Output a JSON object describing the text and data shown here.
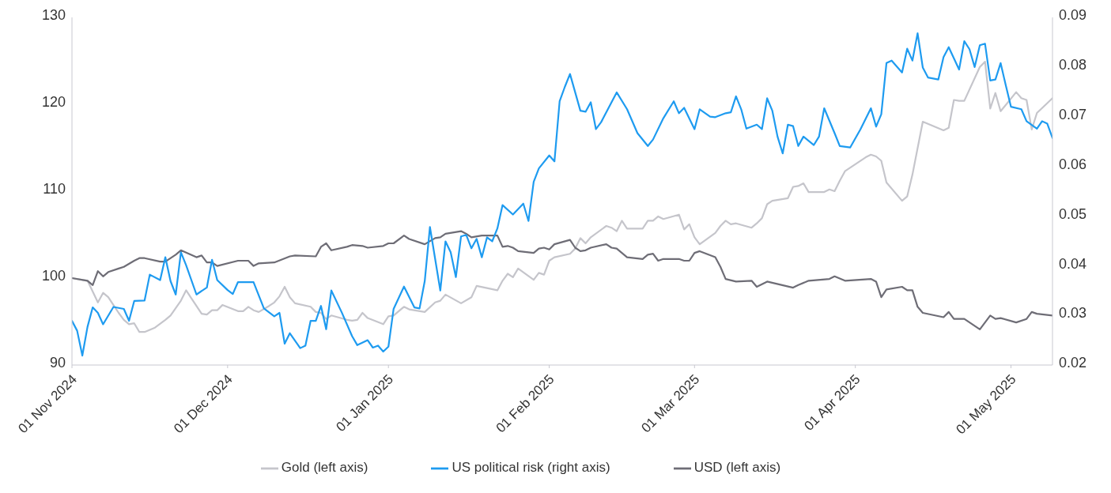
{
  "chart_data": {
    "type": "line",
    "legend": "bottom",
    "xlim": [
      "2024-11-01",
      "2025-05-09"
    ],
    "xticks": [
      {
        "value": "2024-11-01",
        "label": "01 Nov 2024"
      },
      {
        "value": "2024-12-01",
        "label": "01 Dec 2024"
      },
      {
        "value": "2025-01-01",
        "label": "01 Jan 2025"
      },
      {
        "value": "2025-02-01",
        "label": "01 Feb 2025"
      },
      {
        "value": "2025-03-01",
        "label": "01 Mar 2025"
      },
      {
        "value": "2025-04-01",
        "label": "01 Apr 2025"
      },
      {
        "value": "2025-05-01",
        "label": "01 May 2025"
      }
    ],
    "ylim": [
      90,
      130
    ],
    "yticks": [
      90,
      100,
      110,
      120,
      130
    ],
    "y2lim": [
      0.02,
      0.09
    ],
    "y2ticks": [
      0.02,
      0.03,
      0.04,
      0.05,
      0.06,
      0.07,
      0.08,
      0.09
    ],
    "series": [
      {
        "name": "Gold (left axis)",
        "color": "#c5c5cb",
        "x": [
          "2024-11-01",
          "2024-11-04",
          "2024-11-06",
          "2024-11-07",
          "2024-11-08",
          "2024-11-09",
          "2024-11-10",
          "2024-11-11",
          "2024-11-12",
          "2024-11-13",
          "2024-11-14",
          "2024-11-15",
          "2024-11-17",
          "2024-11-19",
          "2024-11-20",
          "2024-11-22",
          "2024-11-23",
          "2024-11-24",
          "2024-11-26",
          "2024-11-27",
          "2024-11-28",
          "2024-11-29",
          "2024-11-30",
          "2024-12-03",
          "2024-12-04",
          "2024-12-05",
          "2024-12-06",
          "2024-12-07",
          "2024-12-09",
          "2024-12-10",
          "2024-12-11",
          "2024-12-12",
          "2024-12-13",
          "2024-12-14",
          "2024-12-17",
          "2024-12-18",
          "2024-12-19",
          "2024-12-20",
          "2024-12-21",
          "2024-12-24",
          "2024-12-25",
          "2024-12-26",
          "2024-12-27",
          "2024-12-28",
          "2024-12-31",
          "2025-01-01",
          "2025-01-02",
          "2025-01-04",
          "2025-01-05",
          "2025-01-08",
          "2025-01-10",
          "2025-01-11",
          "2025-01-12",
          "2025-01-15",
          "2025-01-17",
          "2025-01-18",
          "2025-01-22",
          "2025-01-23",
          "2025-01-24",
          "2025-01-25",
          "2025-01-26",
          "2025-01-29",
          "2025-01-30",
          "2025-01-31",
          "2025-02-01",
          "2025-02-02",
          "2025-02-05",
          "2025-02-06",
          "2025-02-07",
          "2025-02-08",
          "2025-02-09",
          "2025-02-12",
          "2025-02-13",
          "2025-02-14",
          "2025-02-15",
          "2025-02-16",
          "2025-02-19",
          "2025-02-20",
          "2025-02-21",
          "2025-02-22",
          "2025-02-23",
          "2025-02-26",
          "2025-02-27",
          "2025-02-28",
          "2025-03-01",
          "2025-03-02",
          "2025-03-05",
          "2025-03-06",
          "2025-03-07",
          "2025-03-08",
          "2025-03-09",
          "2025-03-12",
          "2025-03-13",
          "2025-03-14",
          "2025-03-15",
          "2025-03-16",
          "2025-03-19",
          "2025-03-20",
          "2025-03-21",
          "2025-03-22",
          "2025-03-23",
          "2025-03-26",
          "2025-03-27",
          "2025-03-28",
          "2025-03-29",
          "2025-03-30",
          "2025-04-03",
          "2025-04-04",
          "2025-04-05",
          "2025-04-06",
          "2025-04-07",
          "2025-04-10",
          "2025-04-11",
          "2025-04-12",
          "2025-04-14",
          "2025-04-18",
          "2025-04-19",
          "2025-04-20",
          "2025-04-21",
          "2025-04-22",
          "2025-04-25",
          "2025-04-26",
          "2025-04-27",
          "2025-04-28",
          "2025-04-29",
          "2025-05-02",
          "2025-05-03",
          "2025-05-04",
          "2025-05-05",
          "2025-05-06",
          "2025-05-09"
        ],
        "values": [
          100.0,
          99.7,
          97.2,
          98.3,
          97.8,
          96.9,
          96.0,
          95.2,
          94.7,
          94.8,
          93.8,
          93.8,
          94.3,
          95.2,
          95.7,
          97.4,
          98.6,
          97.7,
          95.9,
          95.8,
          96.3,
          96.3,
          96.9,
          96.2,
          96.2,
          96.7,
          96.3,
          96.1,
          96.8,
          97.2,
          97.9,
          99.0,
          97.8,
          97.1,
          96.7,
          96.1,
          96.0,
          95.3,
          95.7,
          95.2,
          95.1,
          95.2,
          96.0,
          95.4,
          94.7,
          95.6,
          95.7,
          96.7,
          96.4,
          96.1,
          97.2,
          97.4,
          98.1,
          97.1,
          97.8,
          99.1,
          98.6,
          99.7,
          100.5,
          100.1,
          101.1,
          99.8,
          100.6,
          100.4,
          102.0,
          102.4,
          102.8,
          103.4,
          104.6,
          104.0,
          104.7,
          106.0,
          105.8,
          105.4,
          106.6,
          105.7,
          105.7,
          106.6,
          106.6,
          107.1,
          106.8,
          107.3,
          105.6,
          106.2,
          104.7,
          103.9,
          105.2,
          106.0,
          106.6,
          106.2,
          106.3,
          105.8,
          106.3,
          106.9,
          108.5,
          108.9,
          109.2,
          110.5,
          110.6,
          110.9,
          109.9,
          109.9,
          110.2,
          110.0,
          111.2,
          112.3,
          113.9,
          114.2,
          114.0,
          113.5,
          111.0,
          108.9,
          109.4,
          111.9,
          118.0,
          117.0,
          117.3,
          120.5,
          120.4,
          120.4,
          124.3,
          124.9,
          119.5,
          121.3,
          119.2,
          121.4,
          120.7,
          120.5,
          117.1,
          119.0,
          120.7
        ]
      },
      {
        "name": "USD (left axis)",
        "color": "#6e6d76",
        "x": [
          "2024-11-01",
          "2024-11-04",
          "2024-11-05",
          "2024-11-06",
          "2024-11-07",
          "2024-11-08",
          "2024-11-10",
          "2024-11-11",
          "2024-11-13",
          "2024-11-14",
          "2024-11-15",
          "2024-11-18",
          "2024-11-19",
          "2024-11-21",
          "2024-11-22",
          "2024-11-25",
          "2024-11-26",
          "2024-11-27",
          "2024-11-28",
          "2024-11-29",
          "2024-12-03",
          "2024-12-05",
          "2024-12-06",
          "2024-12-07",
          "2024-12-10",
          "2024-12-13",
          "2024-12-14",
          "2024-12-18",
          "2024-12-19",
          "2024-12-20",
          "2024-12-21",
          "2024-12-24",
          "2024-12-25",
          "2024-12-27",
          "2024-12-28",
          "2024-12-31",
          "2025-01-01",
          "2025-01-02",
          "2025-01-04",
          "2025-01-05",
          "2025-01-08",
          "2025-01-10",
          "2025-01-11",
          "2025-01-12",
          "2025-01-15",
          "2025-01-16",
          "2025-01-17",
          "2025-01-19",
          "2025-01-22",
          "2025-01-23",
          "2025-01-24",
          "2025-01-25",
          "2025-01-26",
          "2025-01-29",
          "2025-01-30",
          "2025-01-31",
          "2025-02-01",
          "2025-02-02",
          "2025-02-05",
          "2025-02-06",
          "2025-02-07",
          "2025-02-08",
          "2025-02-09",
          "2025-02-12",
          "2025-02-13",
          "2025-02-14",
          "2025-02-15",
          "2025-02-16",
          "2025-02-19",
          "2025-02-20",
          "2025-02-21",
          "2025-02-22",
          "2025-02-23",
          "2025-02-26",
          "2025-02-27",
          "2025-02-28",
          "2025-03-01",
          "2025-03-02",
          "2025-03-05",
          "2025-03-06",
          "2025-03-07",
          "2025-03-09",
          "2025-03-12",
          "2025-03-13",
          "2025-03-15",
          "2025-03-20",
          "2025-03-21",
          "2025-03-23",
          "2025-03-27",
          "2025-03-28",
          "2025-03-30",
          "2025-04-04",
          "2025-04-05",
          "2025-04-06",
          "2025-04-07",
          "2025-04-10",
          "2025-04-11",
          "2025-04-12",
          "2025-04-13",
          "2025-04-14",
          "2025-04-18",
          "2025-04-19",
          "2025-04-20",
          "2025-04-22",
          "2025-04-25",
          "2025-04-26",
          "2025-04-27",
          "2025-04-28",
          "2025-04-29",
          "2025-05-02",
          "2025-05-04",
          "2025-05-05",
          "2025-05-06",
          "2025-05-09"
        ],
        "values": [
          100.0,
          99.7,
          99.2,
          100.8,
          100.2,
          100.7,
          101.1,
          101.3,
          102.0,
          102.3,
          102.3,
          101.9,
          101.9,
          102.7,
          103.2,
          102.4,
          102.6,
          101.8,
          101.8,
          101.4,
          102.0,
          102.0,
          101.4,
          101.7,
          101.8,
          102.5,
          102.6,
          102.5,
          103.6,
          104.0,
          103.2,
          103.6,
          103.8,
          103.7,
          103.5,
          103.7,
          104.0,
          104.0,
          104.9,
          104.5,
          103.9,
          104.6,
          104.7,
          105.1,
          105.4,
          105.1,
          104.7,
          104.9,
          104.9,
          103.6,
          103.7,
          103.5,
          103.1,
          102.9,
          103.4,
          103.5,
          103.3,
          103.9,
          104.4,
          103.5,
          103.1,
          103.2,
          103.5,
          103.9,
          103.5,
          103.4,
          102.9,
          102.4,
          102.2,
          102.7,
          102.8,
          102.0,
          102.2,
          102.2,
          102.0,
          102.0,
          102.9,
          103.1,
          102.4,
          101.3,
          99.9,
          99.6,
          99.7,
          99.0,
          99.6,
          98.9,
          99.2,
          99.7,
          99.9,
          100.2,
          99.7,
          99.9,
          99.6,
          97.8,
          98.7,
          99.0,
          98.6,
          98.6,
          96.7,
          96.0,
          95.5,
          96.1,
          95.3,
          95.3,
          94.1,
          94.9,
          95.7,
          95.3,
          95.4,
          94.9,
          95.3,
          96.1,
          95.9,
          95.7
        ]
      },
      {
        "name": "US political risk (right axis)",
        "color": "#1e9bf0",
        "axis": "y2",
        "x": [
          "2024-11-01",
          "2024-11-02",
          "2024-11-03",
          "2024-11-04",
          "2024-11-05",
          "2024-11-06",
          "2024-11-07",
          "2024-11-09",
          "2024-11-11",
          "2024-11-12",
          "2024-11-13",
          "2024-11-15",
          "2024-11-16",
          "2024-11-18",
          "2024-11-19",
          "2024-11-20",
          "2024-11-21",
          "2024-11-22",
          "2024-11-23",
          "2024-11-25",
          "2024-11-27",
          "2024-11-28",
          "2024-11-29",
          "2024-12-01",
          "2024-12-02",
          "2024-12-03",
          "2024-12-06",
          "2024-12-08",
          "2024-12-10",
          "2024-12-11",
          "2024-12-12",
          "2024-12-13",
          "2024-12-15",
          "2024-12-16",
          "2024-12-17",
          "2024-12-18",
          "2024-12-19",
          "2024-12-20",
          "2024-12-21",
          "2024-12-23",
          "2024-12-25",
          "2024-12-26",
          "2024-12-28",
          "2024-12-29",
          "2024-12-30",
          "2024-12-31",
          "2025-01-01",
          "2025-01-02",
          "2025-01-04",
          "2025-01-06",
          "2025-01-07",
          "2025-01-08",
          "2025-01-09",
          "2025-01-10",
          "2025-01-11",
          "2025-01-12",
          "2025-01-13",
          "2025-01-14",
          "2025-01-15",
          "2025-01-16",
          "2025-01-17",
          "2025-01-18",
          "2025-01-19",
          "2025-01-20",
          "2025-01-21",
          "2025-01-22",
          "2025-01-23",
          "2025-01-25",
          "2025-01-27",
          "2025-01-28",
          "2025-01-29",
          "2025-01-30",
          "2025-02-01",
          "2025-02-02",
          "2025-02-03",
          "2025-02-04",
          "2025-02-05",
          "2025-02-07",
          "2025-02-08",
          "2025-02-09",
          "2025-02-10",
          "2025-02-11",
          "2025-02-14",
          "2025-02-16",
          "2025-02-18",
          "2025-02-20",
          "2025-02-21",
          "2025-02-23",
          "2025-02-25",
          "2025-02-26",
          "2025-02-27",
          "2025-03-01",
          "2025-03-02",
          "2025-03-04",
          "2025-03-05",
          "2025-03-07",
          "2025-03-08",
          "2025-03-09",
          "2025-03-10",
          "2025-03-11",
          "2025-03-13",
          "2025-03-14",
          "2025-03-15",
          "2025-03-16",
          "2025-03-17",
          "2025-03-18",
          "2025-03-19",
          "2025-03-20",
          "2025-03-21",
          "2025-03-22",
          "2025-03-24",
          "2025-03-25",
          "2025-03-26",
          "2025-03-28",
          "2025-03-29",
          "2025-03-31",
          "2025-04-02",
          "2025-04-04",
          "2025-04-05",
          "2025-04-06",
          "2025-04-07",
          "2025-04-08",
          "2025-04-10",
          "2025-04-11",
          "2025-04-12",
          "2025-04-13",
          "2025-04-14",
          "2025-04-15",
          "2025-04-17",
          "2025-04-18",
          "2025-04-19",
          "2025-04-21",
          "2025-04-22",
          "2025-04-23",
          "2025-04-24",
          "2025-04-25",
          "2025-04-26",
          "2025-04-27",
          "2025-04-28",
          "2025-04-29",
          "2025-04-30",
          "2025-05-01",
          "2025-05-03",
          "2025-05-04",
          "2025-05-06",
          "2025-05-07",
          "2025-05-08",
          "2025-05-09"
        ],
        "values": [
          0.0289,
          0.0269,
          0.0219,
          0.0277,
          0.0316,
          0.0305,
          0.0282,
          0.0317,
          0.0313,
          0.0289,
          0.0329,
          0.033,
          0.0382,
          0.0371,
          0.0417,
          0.0369,
          0.0342,
          0.0427,
          0.0401,
          0.0342,
          0.0356,
          0.0412,
          0.0371,
          0.0351,
          0.0343,
          0.0367,
          0.0367,
          0.0314,
          0.0298,
          0.0305,
          0.0243,
          0.0264,
          0.0234,
          0.0239,
          0.0289,
          0.0289,
          0.0319,
          0.0272,
          0.035,
          0.0306,
          0.0258,
          0.024,
          0.025,
          0.0235,
          0.0239,
          0.0227,
          0.0237,
          0.0313,
          0.0358,
          0.0316,
          0.0314,
          0.0369,
          0.0478,
          0.0414,
          0.035,
          0.0449,
          0.0427,
          0.0377,
          0.0459,
          0.0462,
          0.0435,
          0.0454,
          0.0417,
          0.0457,
          0.0449,
          0.0475,
          0.0522,
          0.0503,
          0.0525,
          0.049,
          0.0569,
          0.0596,
          0.0622,
          0.061,
          0.0731,
          0.076,
          0.0786,
          0.0712,
          0.071,
          0.0729,
          0.0675,
          0.0689,
          0.0749,
          0.0715,
          0.0667,
          0.0641,
          0.0654,
          0.0697,
          0.0731,
          0.0707,
          0.0718,
          0.0675,
          0.0715,
          0.07,
          0.0699,
          0.0707,
          0.0709,
          0.0741,
          0.0715,
          0.0676,
          0.0684,
          0.0675,
          0.0737,
          0.0712,
          0.066,
          0.0626,
          0.0684,
          0.0681,
          0.0641,
          0.066,
          0.0643,
          0.066,
          0.0717,
          0.0667,
          0.0641,
          0.0638,
          0.0675,
          0.0717,
          0.068,
          0.0705,
          0.0808,
          0.0813,
          0.0789,
          0.0837,
          0.0813,
          0.0868,
          0.0799,
          0.0779,
          0.0775,
          0.082,
          0.084,
          0.0795,
          0.0852,
          0.0836,
          0.08,
          0.0844,
          0.0847,
          0.0773,
          0.0775,
          0.0808,
          0.0763,
          0.072,
          0.0715,
          0.0691,
          0.0676,
          0.0691,
          0.0686,
          0.0657
        ]
      }
    ]
  }
}
